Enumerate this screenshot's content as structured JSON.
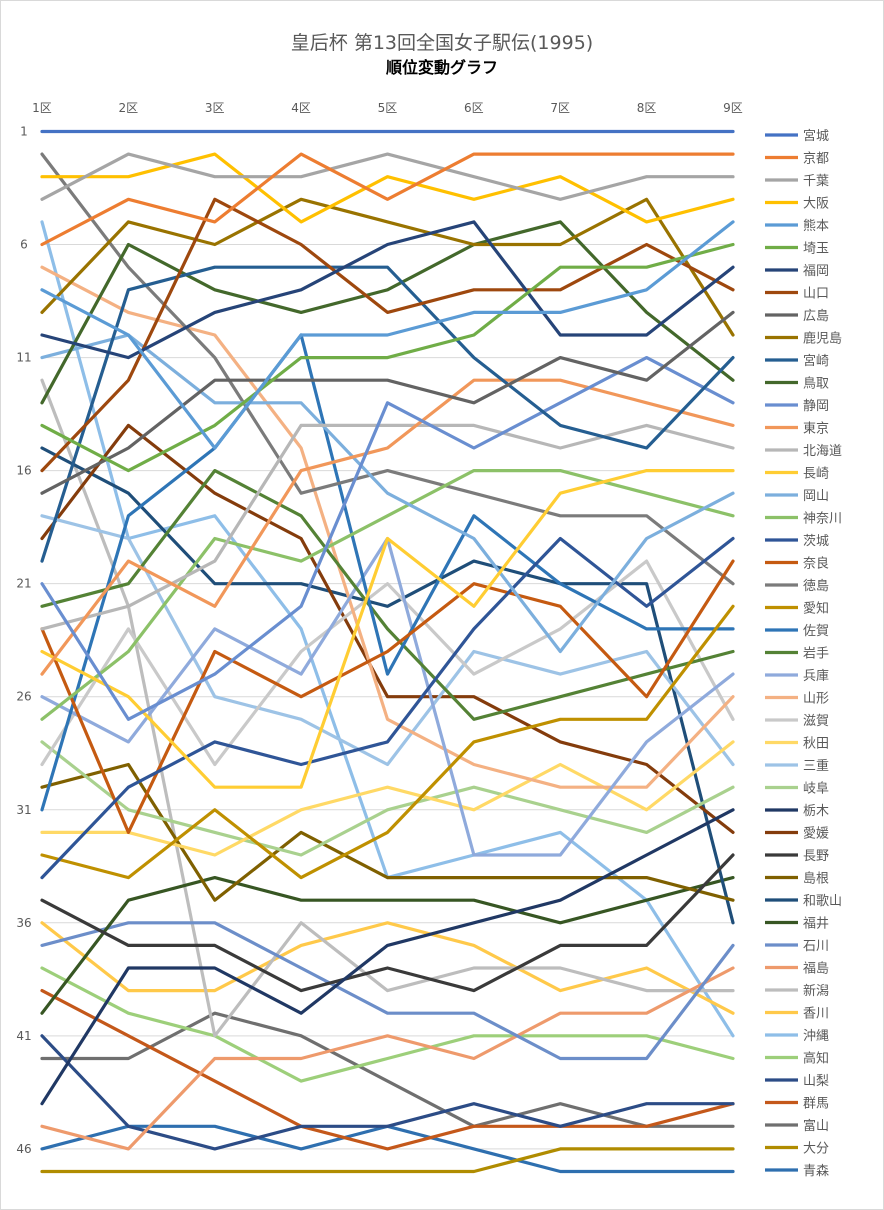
{
  "chart_data": {
    "type": "line",
    "title": "皇后杯 第13回全国女子駅伝(1995)",
    "subtitle": "順位変動グラフ",
    "x": [
      "1区",
      "2区",
      "3区",
      "4区",
      "5区",
      "6区",
      "7区",
      "8区",
      "9区"
    ],
    "y_tick_labels": [
      "1",
      "6",
      "11",
      "16",
      "21",
      "26",
      "31",
      "36",
      "41",
      "46"
    ],
    "ylim": [
      47,
      1
    ],
    "y_reversed": true,
    "grid": true,
    "legend_position": "right",
    "series": [
      {
        "name": "宮城",
        "color": "#4472C4",
        "values": [
          1,
          1,
          1,
          1,
          1,
          1,
          1,
          1,
          1
        ]
      },
      {
        "name": "京都",
        "color": "#ED7D31",
        "values": [
          6,
          4,
          5,
          2,
          4,
          2,
          2,
          2,
          2
        ]
      },
      {
        "name": "千葉",
        "color": "#A5A5A5",
        "values": [
          4,
          2,
          3,
          3,
          2,
          3,
          4,
          3,
          3
        ]
      },
      {
        "name": "大阪",
        "color": "#FFC000",
        "values": [
          3,
          3,
          2,
          5,
          3,
          4,
          3,
          5,
          4
        ]
      },
      {
        "name": "熊本",
        "color": "#5B9BD5",
        "values": [
          8,
          10,
          15,
          10,
          10,
          9,
          9,
          8,
          5
        ]
      },
      {
        "name": "埼玉",
        "color": "#70AD47",
        "values": [
          14,
          16,
          14,
          11,
          11,
          10,
          7,
          7,
          6
        ]
      },
      {
        "name": "福岡",
        "color": "#264478",
        "values": [
          10,
          11,
          9,
          8,
          6,
          5,
          10,
          10,
          7
        ]
      },
      {
        "name": "山口",
        "color": "#9E480E",
        "values": [
          16,
          12,
          4,
          6,
          9,
          8,
          8,
          6,
          8
        ]
      },
      {
        "name": "広島",
        "color": "#636363",
        "values": [
          17,
          15,
          12,
          12,
          12,
          13,
          11,
          12,
          9
        ]
      },
      {
        "name": "鹿児島",
        "color": "#997300",
        "values": [
          9,
          5,
          6,
          4,
          5,
          6,
          6,
          4,
          10
        ]
      },
      {
        "name": "宮崎",
        "color": "#255E91",
        "values": [
          20,
          8,
          7,
          7,
          7,
          11,
          14,
          15,
          11
        ]
      },
      {
        "name": "鳥取",
        "color": "#43682B",
        "values": [
          13,
          6,
          8,
          9,
          8,
          6,
          5,
          9,
          12
        ]
      },
      {
        "name": "静岡",
        "color": "#698ED0",
        "values": [
          21,
          27,
          25,
          22,
          13,
          15,
          13,
          11,
          13
        ]
      },
      {
        "name": "東京",
        "color": "#F1975A",
        "values": [
          25,
          20,
          22,
          16,
          15,
          12,
          12,
          13,
          14
        ]
      },
      {
        "name": "北海道",
        "color": "#B7B7B7",
        "values": [
          23,
          22,
          20,
          14,
          14,
          14,
          15,
          14,
          15
        ]
      },
      {
        "name": "長崎",
        "color": "#FFCD33",
        "values": [
          24,
          26,
          30,
          30,
          19,
          22,
          17,
          16,
          16
        ]
      },
      {
        "name": "岡山",
        "color": "#7CAFDD",
        "values": [
          11,
          10,
          13,
          13,
          17,
          19,
          24,
          19,
          17
        ]
      },
      {
        "name": "神奈川",
        "color": "#8CC168",
        "values": [
          27,
          24,
          19,
          20,
          18,
          16,
          16,
          17,
          18
        ]
      },
      {
        "name": "茨城",
        "color": "#2F5597",
        "values": [
          34,
          30,
          28,
          29,
          28,
          23,
          19,
          22,
          19
        ]
      },
      {
        "name": "奈良",
        "color": "#C55A11",
        "values": [
          23,
          32,
          24,
          26,
          24,
          21,
          22,
          26,
          20
        ]
      },
      {
        "name": "徳島",
        "color": "#7B7B7B",
        "values": [
          2,
          7,
          11,
          17,
          16,
          17,
          18,
          18,
          21
        ]
      },
      {
        "name": "愛知",
        "color": "#BF9000",
        "values": [
          33,
          34,
          31,
          34,
          32,
          28,
          27,
          27,
          22
        ]
      },
      {
        "name": "佐賀",
        "color": "#2E75B6",
        "values": [
          31,
          18,
          15,
          10,
          25,
          18,
          21,
          23,
          23
        ]
      },
      {
        "name": "岩手",
        "color": "#548235",
        "values": [
          22,
          21,
          16,
          18,
          23,
          27,
          26,
          25,
          24
        ]
      },
      {
        "name": "兵庫",
        "color": "#8FAADC",
        "values": [
          26,
          28,
          23,
          25,
          19,
          33,
          33,
          28,
          25
        ]
      },
      {
        "name": "山形",
        "color": "#F4B183",
        "values": [
          7,
          9,
          10,
          15,
          27,
          29,
          30,
          30,
          26
        ]
      },
      {
        "name": "滋賀",
        "color": "#C9C9C9",
        "values": [
          29,
          23,
          29,
          24,
          21,
          25,
          23,
          20,
          27
        ]
      },
      {
        "name": "秋田",
        "color": "#FFD966",
        "values": [
          32,
          32,
          33,
          31,
          30,
          31,
          29,
          31,
          28
        ]
      },
      {
        "name": "三重",
        "color": "#9DC3E6",
        "values": [
          18,
          19,
          26,
          27,
          29,
          24,
          25,
          24,
          29
        ]
      },
      {
        "name": "岐阜",
        "color": "#A9D18E",
        "values": [
          28,
          31,
          32,
          33,
          31,
          30,
          31,
          32,
          30
        ]
      },
      {
        "name": "栃木",
        "color": "#203864",
        "values": [
          44,
          38,
          38,
          40,
          37,
          36,
          35,
          33,
          31
        ]
      },
      {
        "name": "愛媛",
        "color": "#843C0C",
        "values": [
          19,
          14,
          17,
          19,
          26,
          26,
          28,
          29,
          32
        ]
      },
      {
        "name": "長野",
        "color": "#3A3A3A",
        "values": [
          35,
          37,
          37,
          39,
          38,
          39,
          37,
          37,
          33
        ]
      },
      {
        "name": "島根",
        "color": "#7F6000",
        "values": [
          30,
          29,
          35,
          32,
          34,
          34,
          34,
          34,
          35
        ]
      },
      {
        "name": "和歌山",
        "color": "#1F4E79",
        "values": [
          15,
          17,
          21,
          21,
          22,
          20,
          21,
          21,
          36
        ]
      },
      {
        "name": "福井",
        "color": "#375623",
        "values": [
          40,
          35,
          34,
          35,
          35,
          35,
          36,
          35,
          34
        ]
      },
      {
        "name": "石川",
        "color": "#6C8EC9",
        "values": [
          37,
          36,
          36,
          38,
          40,
          40,
          42,
          42,
          37
        ]
      },
      {
        "name": "福島",
        "color": "#EE9A6C",
        "values": [
          45,
          46,
          42,
          42,
          41,
          42,
          40,
          40,
          38
        ]
      },
      {
        "name": "新潟",
        "color": "#BDBDBD",
        "values": [
          12,
          22,
          41,
          36,
          39,
          38,
          38,
          39,
          39
        ]
      },
      {
        "name": "香川",
        "color": "#FFC94A",
        "values": [
          36,
          39,
          39,
          37,
          36,
          37,
          39,
          38,
          40
        ]
      },
      {
        "name": "沖縄",
        "color": "#8EBEE8",
        "values": [
          5,
          19,
          18,
          23,
          34,
          33,
          32,
          35,
          41
        ]
      },
      {
        "name": "高知",
        "color": "#9DCF7A",
        "values": [
          38,
          40,
          41,
          43,
          42,
          41,
          41,
          41,
          42
        ]
      },
      {
        "name": "山梨",
        "color": "#2C4C86",
        "values": [
          41,
          45,
          46,
          45,
          45,
          44,
          45,
          44,
          44
        ]
      },
      {
        "name": "群馬",
        "color": "#C4581A",
        "values": [
          39,
          41,
          43,
          45,
          46,
          45,
          45,
          45,
          44
        ]
      },
      {
        "name": "富山",
        "color": "#6F6F6F",
        "values": [
          42,
          42,
          40,
          41,
          43,
          45,
          44,
          45,
          45
        ]
      },
      {
        "name": "大分",
        "color": "#B08C00",
        "values": [
          47,
          47,
          47,
          47,
          47,
          47,
          46,
          46,
          46
        ]
      },
      {
        "name": "青森",
        "color": "#2E6FAF",
        "values": [
          46,
          45,
          45,
          46,
          45,
          46,
          47,
          47,
          47
        ]
      }
    ]
  }
}
